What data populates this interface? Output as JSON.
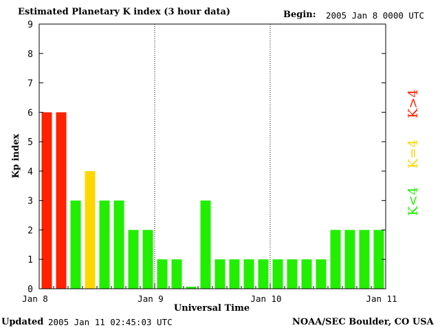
{
  "header": {
    "title": "Estimated Planetary K index (3 hour data)",
    "begin_label": "Begin:",
    "begin_value": "2005 Jan 8 0000 UTC"
  },
  "footer": {
    "updated_label": "Updated",
    "updated_value": "2005 Jan 11 02:45:03 UTC",
    "source": "NOAA/SEC Boulder, CO USA"
  },
  "legend": {
    "above": {
      "label": "K>4",
      "color": "#ff2200"
    },
    "equal": {
      "label": "K=4",
      "color": "#ffd700"
    },
    "below": {
      "label": "K<4",
      "color": "#22ee00"
    }
  },
  "chart_data": {
    "type": "bar",
    "xlabel": "Universal Time",
    "ylabel": "Kp index",
    "ylim": [
      0,
      9
    ],
    "yticks": [
      0,
      1,
      2,
      3,
      4,
      5,
      6,
      7,
      8,
      9
    ],
    "xticks": [
      "Jan 8",
      "Jan 9",
      "Jan 10",
      "Jan 11"
    ],
    "grid": false,
    "day_separators": [
      "Jan 9",
      "Jan 10"
    ],
    "interval_hours": 3,
    "values": [
      6,
      6,
      3,
      4,
      3,
      3,
      2,
      2,
      1,
      1,
      0.07,
      3,
      1,
      1,
      1,
      1,
      1,
      1,
      1,
      1,
      2,
      2,
      2,
      2
    ],
    "colors": {
      "above_4": "#ff2200",
      "equal_4": "#ffd700",
      "below_4": "#22ee00"
    }
  }
}
